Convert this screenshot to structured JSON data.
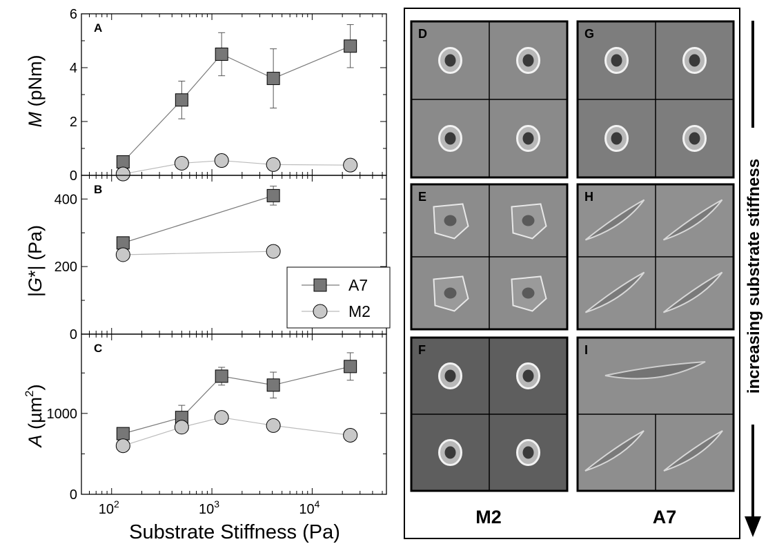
{
  "colors": {
    "a7_fill": "#777777",
    "m2_fill": "#c8c8c8",
    "a7_line": "#7a7a7a",
    "m2_line": "#bbbbbb"
  },
  "chart_data": [
    {
      "type": "scatter",
      "panel": "A",
      "ylabel_italic": "M",
      "ylabel_rest": " (pNm)",
      "xscale": "log",
      "xlim": [
        50,
        55000
      ],
      "ylim": [
        0,
        6
      ],
      "yticks": [
        "0",
        "2",
        "4",
        "6"
      ],
      "series": [
        {
          "name": "A7",
          "marker": "square",
          "x": [
            130,
            500,
            1250,
            4100,
            24000
          ],
          "y": [
            0.5,
            2.8,
            4.5,
            3.6,
            4.8
          ],
          "err": [
            0,
            0.7,
            0.8,
            1.1,
            0.8
          ]
        },
        {
          "name": "M2",
          "marker": "circle",
          "x": [
            130,
            500,
            1250,
            4100,
            24000
          ],
          "y": [
            0.05,
            0.45,
            0.55,
            0.4,
            0.38
          ],
          "err": [
            0,
            0,
            0,
            0,
            0
          ]
        }
      ]
    },
    {
      "type": "scatter",
      "panel": "B",
      "ylabel_pre": "|",
      "ylabel_italic": "G",
      "ylabel_rest": "*| (Pa)",
      "xscale": "log",
      "xlim": [
        50,
        55000
      ],
      "ylim": [
        0,
        470
      ],
      "yticks": [
        "0",
        "200",
        "400"
      ],
      "series": [
        {
          "name": "A7",
          "marker": "square",
          "x": [
            130,
            4100
          ],
          "y": [
            270,
            410
          ],
          "err": [
            0,
            28
          ]
        },
        {
          "name": "M2",
          "marker": "circle",
          "x": [
            130,
            4100
          ],
          "y": [
            235,
            245
          ],
          "err": [
            0,
            0
          ]
        }
      ]
    },
    {
      "type": "scatter",
      "panel": "C",
      "ylabel_italic": "A",
      "ylabel_rest": " (µm",
      "ylabel_sup": "2",
      "ylabel_end": ")",
      "xscale": "log",
      "xlim": [
        50,
        55000
      ],
      "ylim": [
        0,
        1980
      ],
      "yticks": [
        "0",
        "1000"
      ],
      "xlabel": "Substrate Stiffness (Pa)",
      "xticks": [
        {
          "base": "10",
          "exp": "2",
          "value": 100
        },
        {
          "base": "10",
          "exp": "3",
          "value": 1000
        },
        {
          "base": "10",
          "exp": "4",
          "value": 10000
        }
      ],
      "series": [
        {
          "name": "A7",
          "marker": "square",
          "x": [
            130,
            500,
            1250,
            4100,
            24000
          ],
          "y": [
            750,
            950,
            1460,
            1350,
            1580
          ],
          "err": [
            0,
            150,
            110,
            160,
            170
          ]
        },
        {
          "name": "M2",
          "marker": "circle",
          "x": [
            130,
            500,
            1250,
            4100,
            24000
          ],
          "y": [
            600,
            830,
            950,
            850,
            730
          ],
          "err": [
            0,
            0,
            0,
            0,
            0
          ]
        }
      ]
    }
  ],
  "legend": [
    {
      "label": "A7",
      "marker": "square"
    },
    {
      "label": "M2",
      "marker": "circle"
    }
  ],
  "micrographs": {
    "M2_label": "M2",
    "A7_label": "A7",
    "arrow_label": "increasing substrate stiffness",
    "panels": [
      {
        "letter": "D",
        "tone": "#8a8a8a",
        "shape": "round"
      },
      {
        "letter": "G",
        "tone": "#7d7d7d",
        "shape": "round"
      },
      {
        "letter": "E",
        "tone": "#8c8c8c",
        "shape": "spread"
      },
      {
        "letter": "H",
        "tone": "#909090",
        "shape": "spindle"
      },
      {
        "letter": "F",
        "tone": "#5e5e5e",
        "shape": "round"
      },
      {
        "letter": "I",
        "tone": "#8e8e8e",
        "shape": "spindle"
      }
    ]
  }
}
